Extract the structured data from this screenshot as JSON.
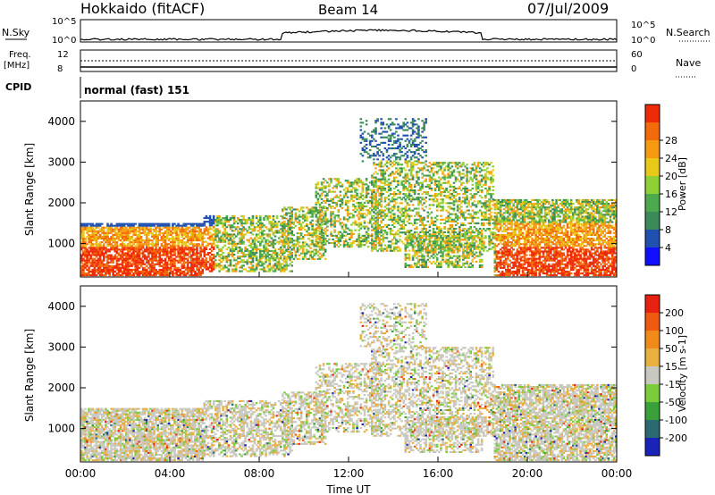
{
  "header": {
    "station": "Hokkaido (fitACF)",
    "beam": "Beam 14",
    "date": "07/Jul/2009"
  },
  "top_panels": {
    "nsky_label": "N.Sky",
    "nsearch_label": "N.Search",
    "noise_ticks": [
      "10^5",
      "10^0"
    ],
    "freq_label": "Freq.",
    "freq_unit": "[MHz]",
    "freq_ticks": [
      "12",
      "8"
    ],
    "nave_label": "Nave",
    "nave_ticks": [
      "60",
      "0"
    ],
    "cpid_label": "CPID",
    "cpid_value": "normal (fast) 151"
  },
  "chart_data": [
    {
      "type": "heatmap",
      "panel": "power",
      "ylabel": "Slant Range [km]",
      "xlabel": "",
      "y_ticks": [
        1000,
        2000,
        3000,
        4000
      ],
      "ylim": [
        180,
        4500
      ],
      "colorbar_label": "Power [dB]",
      "colorbar_ticks": [
        4,
        8,
        12,
        16,
        20,
        24,
        28
      ],
      "colorbar_colors": [
        "#1010ff",
        "#2050b0",
        "#3a8a5a",
        "#4caa4c",
        "#8ed035",
        "#e8c818",
        "#f59a10",
        "#f26a0a",
        "#ee2a08"
      ]
    },
    {
      "type": "heatmap",
      "panel": "velocity",
      "ylabel": "Slant Range [km]",
      "xlabel": "Time UT",
      "x_ticks": [
        "00:00",
        "04:00",
        "08:00",
        "12:00",
        "16:00",
        "20:00",
        "00:00"
      ],
      "xlim_hours": [
        0,
        24
      ],
      "y_ticks": [
        1000,
        2000,
        3000,
        4000
      ],
      "ylim": [
        180,
        4500
      ],
      "colorbar_label": "Velocity [m s-1]",
      "colorbar_ticks": [
        200,
        100,
        50,
        15,
        -15,
        -50,
        -100,
        -200
      ],
      "colorbar_colors": [
        "#1a22b8",
        "#2a6a70",
        "#3aa03a",
        "#7acc3a",
        "#c8c8c0",
        "#e8b040",
        "#f08a18",
        "#f05a10",
        "#e82010"
      ]
    }
  ],
  "scatter_regions": [
    {
      "t0": 0.0,
      "t1": 5.5,
      "r0": 200,
      "r1": 1500,
      "density": 0.8
    },
    {
      "t0": 5.5,
      "t1": 9.5,
      "r0": 300,
      "r1": 1700,
      "density": 0.55
    },
    {
      "t0": 9.0,
      "t1": 11.0,
      "r0": 600,
      "r1": 1900,
      "density": 0.5
    },
    {
      "t0": 10.5,
      "t1": 13.5,
      "r0": 900,
      "r1": 2600,
      "density": 0.45
    },
    {
      "t0": 13.0,
      "t1": 18.5,
      "r0": 800,
      "r1": 3000,
      "density": 0.45
    },
    {
      "t0": 12.5,
      "t1": 15.5,
      "r0": 3000,
      "r1": 4100,
      "density": 0.3
    },
    {
      "t0": 14.5,
      "t1": 18.0,
      "r0": 400,
      "r1": 1300,
      "density": 0.5
    },
    {
      "t0": 18.5,
      "t1": 24.0,
      "r0": 200,
      "r1": 2100,
      "density": 0.75
    }
  ]
}
